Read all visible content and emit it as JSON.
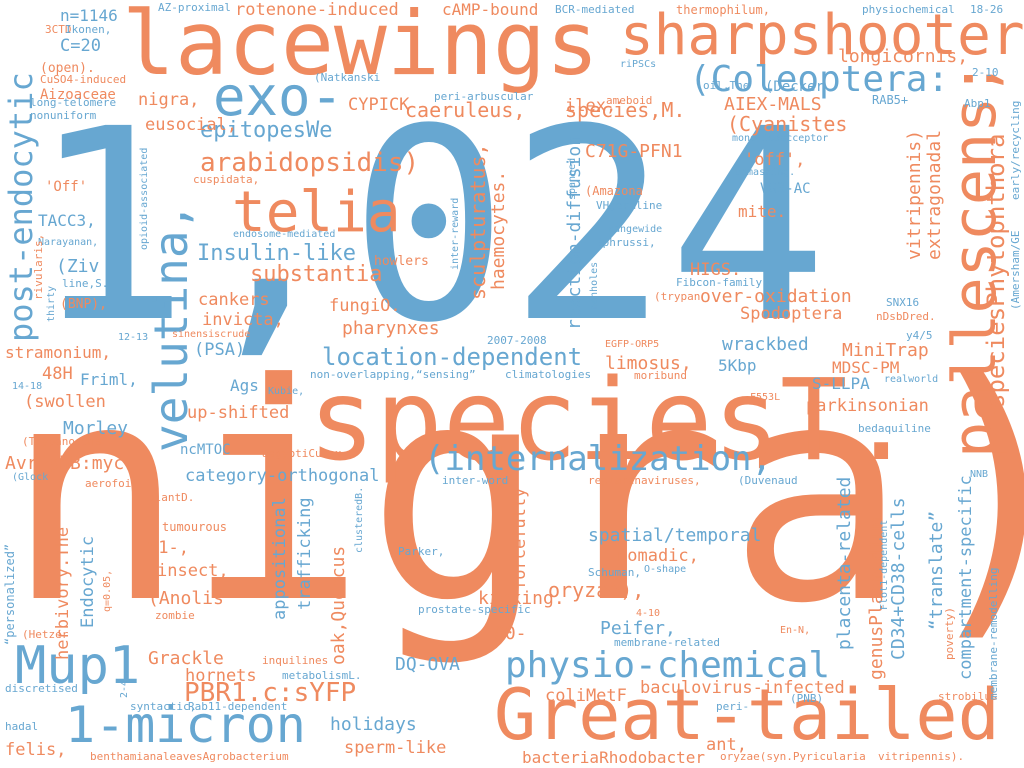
{
  "colors": {
    "orange": "#ef8a5f",
    "blue": "#67a7d1"
  },
  "words": [
    {
      "t": "nigra)",
      "c": "orange"
    },
    {
      "t": "1,024",
      "c": "blue"
    },
    {
      "t": "speciesT.",
      "c": "orange"
    },
    {
      "t": "lacewings",
      "c": "orange"
    },
    {
      "t": "sharpshooter",
      "c": "orange"
    },
    {
      "t": "Great-tailed",
      "c": "orange"
    },
    {
      "t": "pallescens;",
      "c": "orange"
    },
    {
      "t": "velutina,",
      "c": "blue"
    },
    {
      "t": "exo-",
      "c": "blue"
    },
    {
      "t": "telia",
      "c": "orange"
    },
    {
      "t": "Mup1",
      "c": "blue"
    },
    {
      "t": "1-micron",
      "c": "blue"
    },
    {
      "t": "(internalization,",
      "c": "blue"
    },
    {
      "t": "physio-chemical",
      "c": "blue"
    },
    {
      "t": "(Coleoptera:",
      "c": "blue"
    },
    {
      "t": "post-endocytic",
      "c": "blue"
    },
    {
      "t": "speciesPhytophthora",
      "c": "orange"
    },
    {
      "t": "arabidopsidis)",
      "c": "orange"
    },
    {
      "t": "location-dependent",
      "c": "blue"
    },
    {
      "t": "PBR1.c:sYFP",
      "c": "orange"
    },
    {
      "t": "Insulin-like",
      "c": "blue"
    },
    {
      "t": "substantia",
      "c": "orange"
    },
    {
      "t": "species,M.",
      "c": "orange"
    },
    {
      "t": "caeruleus,",
      "c": "orange"
    },
    {
      "t": "epitopesWe",
      "c": "blue"
    },
    {
      "t": "longicornis,",
      "c": "orange"
    },
    {
      "t": "(Cyanistes",
      "c": "orange"
    },
    {
      "t": "AIEX-MALS",
      "c": "orange"
    },
    {
      "t": "rotenone-induced",
      "c": "orange"
    },
    {
      "t": "cAMP-bound",
      "c": "orange"
    },
    {
      "t": "n=1146",
      "c": "blue"
    },
    {
      "t": "C=20",
      "c": "blue"
    },
    {
      "t": "nigra,",
      "c": "orange"
    },
    {
      "t": "eusocial,",
      "c": "orange"
    },
    {
      "t": "CYPICK",
      "c": "orange"
    },
    {
      "t": "ilex,",
      "c": "orange"
    },
    {
      "t": "C71G-PFN1",
      "c": "orange"
    },
    {
      "t": "'off',",
      "c": "orange"
    },
    {
      "t": "mite.",
      "c": "orange"
    },
    {
      "t": "VG3-AC",
      "c": "blue"
    },
    {
      "t": "HIGS.",
      "c": "orange"
    },
    {
      "t": "over-oxidation",
      "c": "orange"
    },
    {
      "t": "Spodoptera",
      "c": "orange"
    },
    {
      "t": "wrackbed",
      "c": "blue"
    },
    {
      "t": "MiniTrap",
      "c": "orange"
    },
    {
      "t": "MDSC-PM",
      "c": "orange"
    },
    {
      "t": "S-LLPA",
      "c": "blue"
    },
    {
      "t": "parkinsonian",
      "c": "orange"
    },
    {
      "t": "5Kbp",
      "c": "blue"
    },
    {
      "t": "limosus,",
      "c": "orange"
    },
    {
      "t": "TACC3,",
      "c": "blue"
    },
    {
      "t": "(Ziv",
      "c": "blue"
    },
    {
      "t": "cankers",
      "c": "orange"
    },
    {
      "t": "fungiO.",
      "c": "orange"
    },
    {
      "t": "invicta,",
      "c": "orange"
    },
    {
      "t": "pharynxes",
      "c": "orange"
    },
    {
      "t": "(PSA)",
      "c": "blue"
    },
    {
      "t": "stramonium,",
      "c": "orange"
    },
    {
      "t": "48H",
      "c": "orange"
    },
    {
      "t": "Friml,",
      "c": "blue"
    },
    {
      "t": "(swollen",
      "c": "orange"
    },
    {
      "t": "Ags",
      "c": "blue"
    },
    {
      "t": "up-shifted",
      "c": "orange"
    },
    {
      "t": "Morley",
      "c": "blue"
    },
    {
      "t": "AvrPphB:myc",
      "c": "orange"
    },
    {
      "t": "ncMTOC",
      "c": "blue"
    },
    {
      "t": "category-orthogonal",
      "c": "blue"
    },
    {
      "t": "M1-,",
      "c": "orange"
    },
    {
      "t": "insect,",
      "c": "orange"
    },
    {
      "t": "(Anolis",
      "c": "orange"
    },
    {
      "t": "Grackle",
      "c": "orange"
    },
    {
      "t": "hornets",
      "c": "orange"
    },
    {
      "t": "holidays",
      "c": "blue"
    },
    {
      "t": "sperm-like",
      "c": "orange"
    },
    {
      "t": "felis,",
      "c": "orange"
    },
    {
      "t": "DQ-OVA",
      "c": "blue"
    },
    {
      "t": "oryzae),",
      "c": "orange"
    },
    {
      "t": "kicking.",
      "c": "orange"
    },
    {
      "t": "spatial/temporal",
      "c": "blue"
    },
    {
      "t": "nomadic,",
      "c": "orange"
    },
    {
      "t": "Peifer,",
      "c": "blue"
    },
    {
      "t": "80-",
      "c": "orange"
    },
    {
      "t": "coliMetF",
      "c": "orange"
    },
    {
      "t": "baculovirus-infected",
      "c": "orange"
    },
    {
      "t": "ant,",
      "c": "orange"
    },
    {
      "t": "bacteriaRhodobacter",
      "c": "orange"
    },
    {
      "t": "reaction-diffusion,",
      "c": "blue"
    },
    {
      "t": "sculpturatus,",
      "c": "orange"
    },
    {
      "t": "haemocytes.",
      "c": "orange"
    },
    {
      "t": "vitripennis)",
      "c": "orange"
    },
    {
      "t": "extragonadal",
      "c": "orange"
    },
    {
      "t": "compartment-specific",
      "c": "blue"
    },
    {
      "t": "“translate”",
      "c": "blue"
    },
    {
      "t": "CD34+CD38-cells",
      "c": "blue"
    },
    {
      "t": "genusPlasmodium.",
      "c": "orange"
    },
    {
      "t": "placenta-related",
      "c": "blue"
    },
    {
      "t": "appositional",
      "c": "blue"
    },
    {
      "t": "trafficking",
      "c": "blue"
    },
    {
      "t": "oak,Quercus",
      "c": "orange"
    },
    {
      "t": "Endocytic",
      "c": "blue"
    },
    {
      "t": "herbivory.The",
      "c": "orange"
    },
    {
      "t": "forcefully",
      "c": "orange"
    },
    {
      "t": "'Off'",
      "c": "orange"
    },
    {
      "t": "Aizoaceae",
      "c": "orange"
    },
    {
      "t": "(open).",
      "c": "orange"
    },
    {
      "t": "CuSO4-induced",
      "c": "orange"
    },
    {
      "t": "long-telomere",
      "c": "blue"
    },
    {
      "t": "nonuniform",
      "c": "blue"
    },
    {
      "t": "3CTD",
      "c": "orange"
    },
    {
      "t": "Ikonen,",
      "c": "blue"
    },
    {
      "t": "AZ-proximal",
      "c": "blue"
    },
    {
      "t": "BCR-mediated",
      "c": "blue"
    },
    {
      "t": "thermophilum,",
      "c": "orange"
    },
    {
      "t": "physiochemical",
      "c": "blue"
    },
    {
      "t": "18-26",
      "c": "blue"
    },
    {
      "t": "riPSCs",
      "c": "blue"
    },
    {
      "t": "oil.The",
      "c": "blue"
    },
    {
      "t": "(Decker",
      "c": "blue"
    },
    {
      "t": "2-10",
      "c": "blue"
    },
    {
      "t": "(Natkanski",
      "c": "blue"
    },
    {
      "t": "peri-arbuscular",
      "c": "blue"
    },
    {
      "t": "ameboid",
      "c": "orange"
    },
    {
      "t": "RAB5+",
      "c": "blue"
    },
    {
      "t": "Abp1",
      "c": "blue"
    },
    {
      "t": "mono-isoacceptor",
      "c": "blue"
    },
    {
      "t": "cuspidata,",
      "c": "orange"
    },
    {
      "t": "unmasking.",
      "c": "blue"
    },
    {
      "t": "(Amazona",
      "c": "orange"
    },
    {
      "t": "VHgermline",
      "c": "blue"
    },
    {
      "t": "rangewide",
      "c": "blue"
    },
    {
      "t": "Ephrussi,",
      "c": "blue"
    },
    {
      "t": "endosome-mediated",
      "c": "blue"
    },
    {
      "t": "howlers",
      "c": "orange"
    },
    {
      "t": "Narayanan,",
      "c": "blue"
    },
    {
      "t": "line,S.",
      "c": "blue"
    },
    {
      "t": "(BNP),",
      "c": "orange"
    },
    {
      "t": "12-13",
      "c": "blue"
    },
    {
      "t": "sinensiscrude",
      "c": "orange"
    },
    {
      "t": "2007-2008",
      "c": "blue"
    },
    {
      "t": "EGFP-ORP5",
      "c": "orange"
    },
    {
      "t": "Fibcon-family",
      "c": "blue"
    },
    {
      "t": "(trypan",
      "c": "orange"
    },
    {
      "t": "SNX16",
      "c": "blue"
    },
    {
      "t": "nDsbDred.",
      "c": "orange"
    },
    {
      "t": "y4/5",
      "c": "blue"
    },
    {
      "t": "14-18",
      "c": "blue"
    },
    {
      "t": "Kubie,",
      "c": "blue"
    },
    {
      "t": "non-overlapping,“sensing”",
      "c": "blue"
    },
    {
      "t": "climatologies",
      "c": "blue"
    },
    {
      "t": "realworld",
      "c": "blue"
    },
    {
      "t": "moribund",
      "c": "orange"
    },
    {
      "t": "F553L",
      "c": "orange"
    },
    {
      "t": "bedaquiline",
      "c": "blue"
    },
    {
      "t": "(Trypanosoma",
      "c": "orange"
    },
    {
      "t": "aegyptiCulex",
      "c": "orange"
    },
    {
      "t": "(Glock",
      "c": "blue"
    },
    {
      "t": "aerofoil",
      "c": "orange"
    },
    {
      "t": "plantD.",
      "c": "orange"
    },
    {
      "t": "inter-word",
      "c": "blue"
    },
    {
      "t": "reptarenaviruses,",
      "c": "orange"
    },
    {
      "t": "(Duvenaud",
      "c": "blue"
    },
    {
      "t": "NNB",
      "c": "blue"
    },
    {
      "t": "tumourous",
      "c": "orange"
    },
    {
      "t": "Parker,",
      "c": "blue"
    },
    {
      "t": "Schuman,",
      "c": "blue"
    },
    {
      "t": "O-shape",
      "c": "blue"
    },
    {
      "t": "prostate-specific",
      "c": "blue"
    },
    {
      "t": "En-N,",
      "c": "orange"
    },
    {
      "t": "4-10",
      "c": "orange"
    },
    {
      "t": "membrane-related",
      "c": "blue"
    },
    {
      "t": "(Hetzer",
      "c": "orange"
    },
    {
      "t": "zombie",
      "c": "orange"
    },
    {
      "t": "inquilines",
      "c": "orange"
    },
    {
      "t": "metabolismL.",
      "c": "blue"
    },
    {
      "t": "discretised",
      "c": "blue"
    },
    {
      "t": "syntactic,",
      "c": "blue"
    },
    {
      "t": "Rab11-dependent",
      "c": "blue"
    },
    {
      "t": "peri-",
      "c": "blue"
    },
    {
      "t": "(PNB)",
      "c": "blue"
    },
    {
      "t": "strobilus",
      "c": "orange"
    },
    {
      "t": "hadal",
      "c": "blue"
    },
    {
      "t": "benthamianaleavesAgrobacterium",
      "c": "orange"
    },
    {
      "t": "oryzae(syn.Pyricularia",
      "c": "orange"
    },
    {
      "t": "vitripennis).",
      "c": "orange"
    },
    {
      "t": "“personalized”",
      "c": "blue"
    },
    {
      "t": "q=0.05,",
      "c": "orange"
    },
    {
      "t": "2-4",
      "c": "blue"
    },
    {
      "t": "clusteredB.",
      "c": "blue"
    },
    {
      "t": "Flot1-dependent",
      "c": "blue"
    },
    {
      "t": "poverty)",
      "c": "orange"
    },
    {
      "t": "membrane-remodelling",
      "c": "blue"
    },
    {
      "t": "early/recycling",
      "c": "blue"
    },
    {
      "t": "(Amersham/GE",
      "c": "blue"
    },
    {
      "t": "thirty",
      "c": "blue"
    },
    {
      "t": "rivularis,",
      "c": "orange"
    },
    {
      "t": "opioid-associated",
      "c": "blue"
    },
    {
      "t": "inter-reward",
      "c": "blue"
    },
    {
      "t": "spanned",
      "c": "blue"
    },
    {
      "t": "manholes",
      "c": "blue"
    }
  ]
}
